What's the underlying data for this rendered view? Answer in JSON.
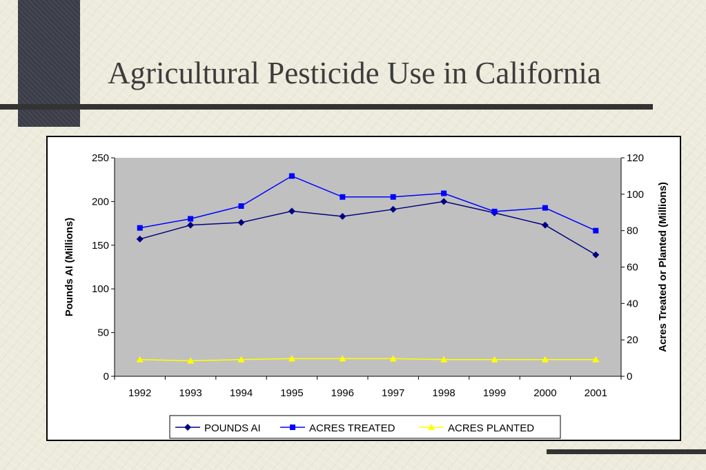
{
  "slide": {
    "title": "Agricultural Pesticide Use in California"
  },
  "colors": {
    "plot_background": "#c0c0c0",
    "pounds_ai": "#000080",
    "acres_treated": "#0000ff",
    "acres_planted": "#ffff00",
    "title_text": "#3c3c3c",
    "rule": "#333333"
  },
  "chart_data": {
    "type": "line",
    "title": "",
    "xlabel": "",
    "ylabel": "Pounds AI (Millions)",
    "y2label": "Acres Treated or Planted (Millions)",
    "categories": [
      "1992",
      "1993",
      "1994",
      "1995",
      "1996",
      "1997",
      "1998",
      "1999",
      "2000",
      "2001"
    ],
    "ylim": [
      0,
      250
    ],
    "yticks": [
      0,
      50,
      100,
      150,
      200,
      250
    ],
    "y2lim": [
      0,
      120
    ],
    "y2ticks": [
      0,
      20,
      40,
      60,
      80,
      100,
      120
    ],
    "grid": false,
    "legend_position": "bottom",
    "series": [
      {
        "name": "POUNDS AI",
        "axis": "left",
        "marker": "diamond",
        "values": [
          157,
          173,
          176,
          189,
          183,
          191,
          200,
          187,
          173,
          139
        ]
      },
      {
        "name": "ACRES TREATED",
        "axis": "right",
        "marker": "square",
        "values": [
          81.5,
          86.5,
          93.5,
          110,
          98.5,
          98.5,
          100.5,
          90.5,
          92.5,
          80
        ]
      },
      {
        "name": "ACRES PLANTED",
        "axis": "right",
        "marker": "triangle",
        "values": [
          9.2,
          8.5,
          9.2,
          9.7,
          9.7,
          9.7,
          9.2,
          9.2,
          9.2,
          9.2
        ]
      }
    ]
  }
}
